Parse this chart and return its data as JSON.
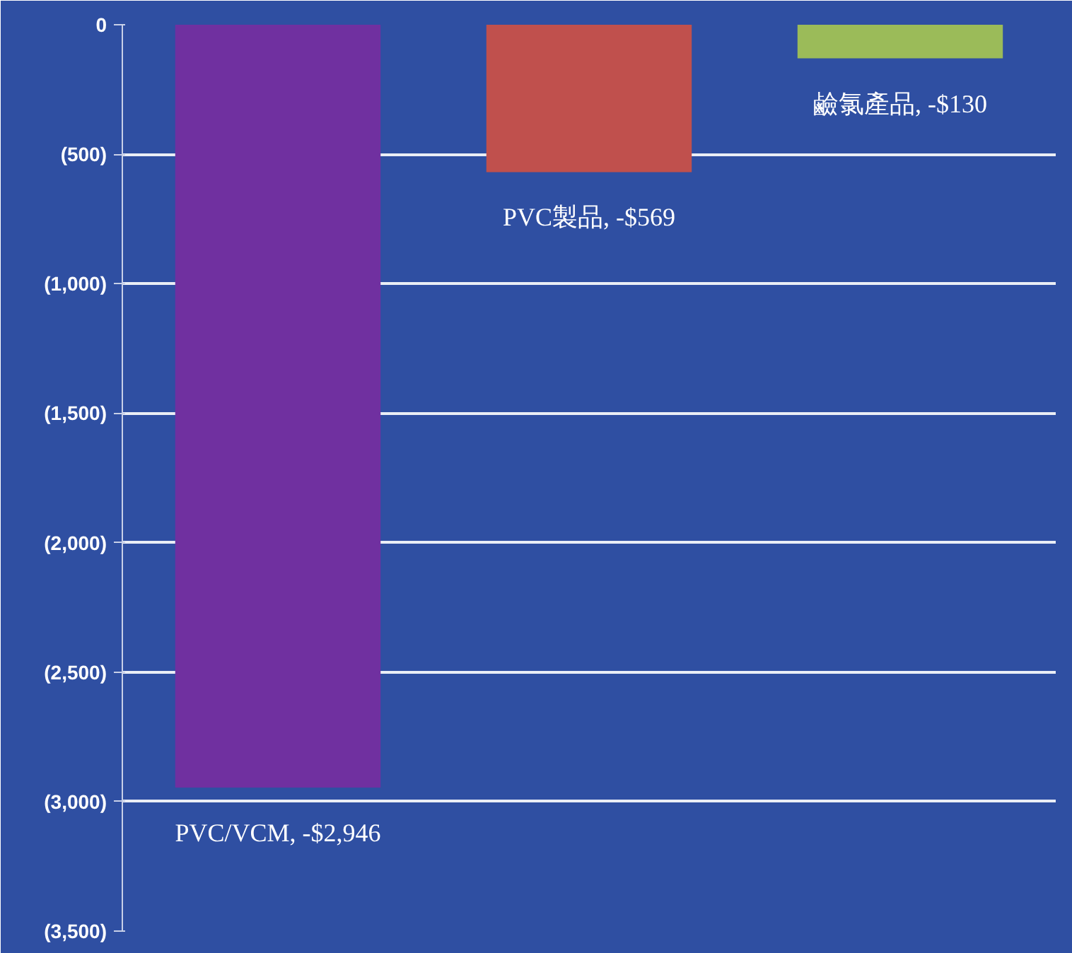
{
  "chart_data": {
    "type": "bar",
    "categories": [
      null,
      null,
      null
    ],
    "values": [
      -2946,
      -569,
      -130
    ],
    "colors": [
      "#7030a0",
      "#c0504d",
      "#9bbb59"
    ],
    "value_labels": [
      "PVC/VCM, -$2,946",
      "PVC製品, -$569",
      "鹼氯產品, -$130"
    ],
    "ylim": [
      -3500,
      0
    ],
    "yticks": [
      {
        "value": 0,
        "label": "0"
      },
      {
        "value": -500,
        "label": "(500)"
      },
      {
        "value": -1000,
        "label": "(1,000)"
      },
      {
        "value": -1500,
        "label": "(1,500)"
      },
      {
        "value": -2000,
        "label": "(2,000)"
      },
      {
        "value": -2500,
        "label": "(2,500)"
      },
      {
        "value": -3000,
        "label": "(3,000)"
      },
      {
        "value": -3500,
        "label": "(3,500)"
      }
    ],
    "grid": "y"
  }
}
